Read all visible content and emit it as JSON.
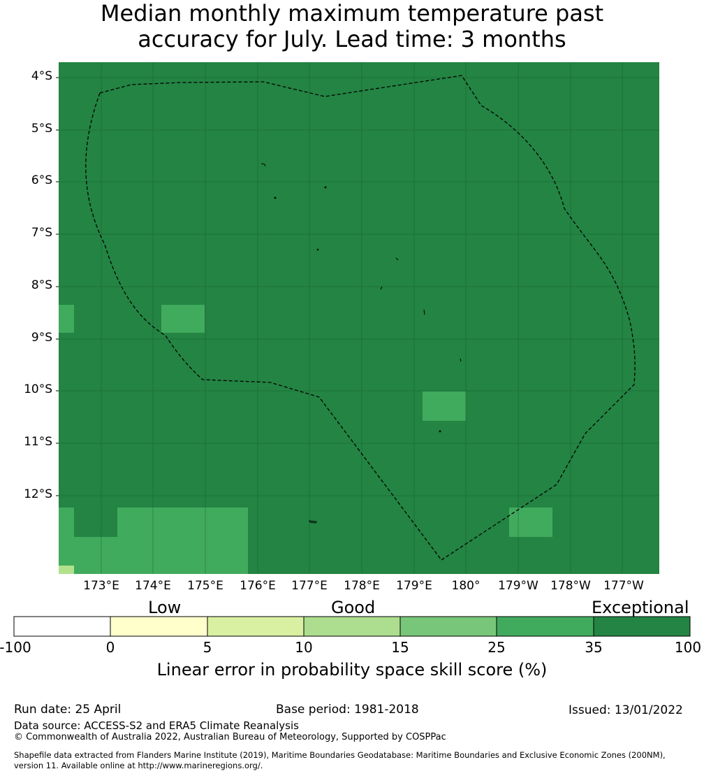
{
  "title": {
    "line1": "Median monthly maximum temperature past",
    "line2": "accuracy for July. Lead time: 3 months"
  },
  "map": {
    "lat_labels": [
      "4°S",
      "5°S",
      "6°S",
      "7°S",
      "8°S",
      "9°S",
      "10°S",
      "11°S",
      "12°S"
    ],
    "lon_labels": [
      "173°E",
      "174°E",
      "175°E",
      "176°E",
      "177°E",
      "178°E",
      "179°E",
      "180°",
      "179°W",
      "178°W",
      "177°W"
    ],
    "background_color": "#238443",
    "cell_colors": {
      "25-35": "#41ab5d",
      "15-25": "#78c679",
      "5-10": "#d9f0a3"
    },
    "boundary": "EEZ dashed line"
  },
  "colorbar": {
    "category_labels": {
      "low": "Low",
      "good": "Good",
      "exceptional": "Exceptional"
    },
    "ticks": [
      "-100",
      "0",
      "5",
      "10",
      "15",
      "25",
      "35",
      "100"
    ],
    "colors": [
      "#ffffff",
      "#ffffcc",
      "#d9f0a3",
      "#addd8e",
      "#78c679",
      "#41ab5d",
      "#238443"
    ],
    "label": "Linear error in probability space skill score (%)"
  },
  "footer": {
    "run_date": "Run date: 25 April",
    "base_period": "Base period: 1981-2018",
    "issued": "Issued: 13/01/2022",
    "data_source": "Data source: ACCESS-S2 and ERA5 Climate Reanalysis",
    "copyright": "© Commonwealth of Australia 2022, Australian Bureau of Meteorology, Supported by COSPPac",
    "shapefile_line1": "Shapefile data extracted from Flanders Marine Institute (2019), Maritime Boundaries Geodatabase: Maritime Boundaries and Exclusive Economic Zones (200NM),",
    "shapefile_line2": "version 11. Available online at http://www.marineregions.org/."
  }
}
